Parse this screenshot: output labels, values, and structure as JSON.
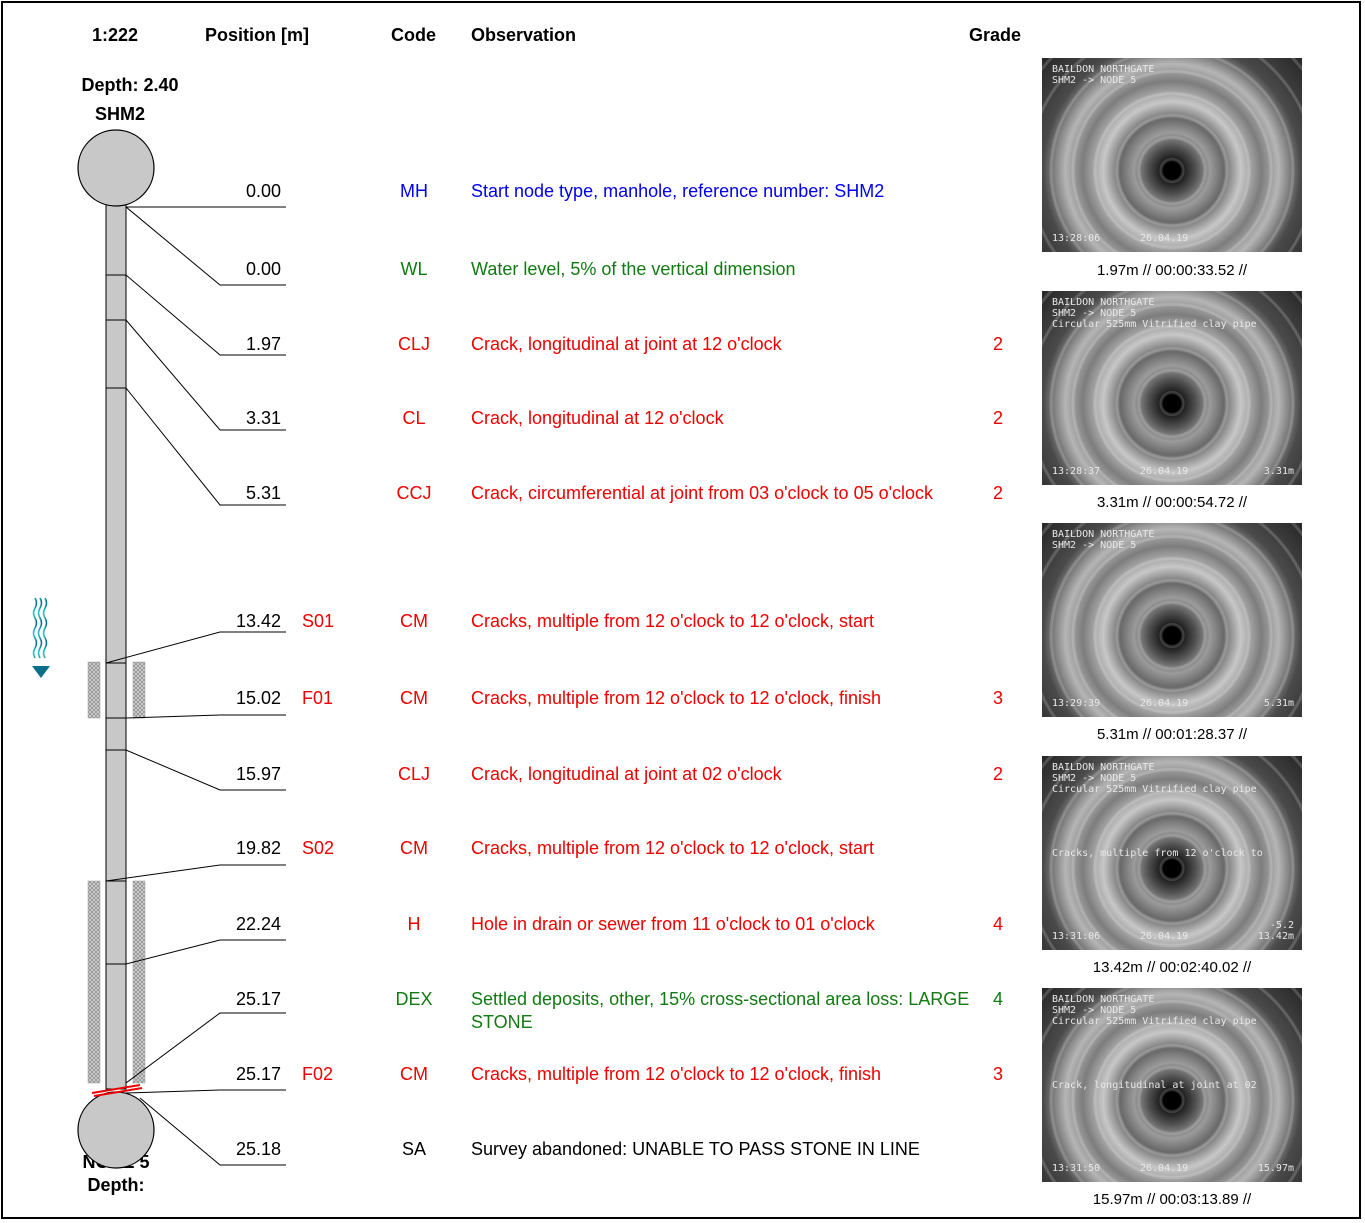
{
  "header": {
    "scale": "1:222",
    "position": "Position [m]",
    "code": "Code",
    "observation": "Observation",
    "grade": "Grade"
  },
  "start_node": {
    "depth": "Depth: 2.40",
    "name": "SHM2"
  },
  "end_node": {
    "name": "NODE 5",
    "depth": "Depth:"
  },
  "colors": {
    "blue": "#0000ee",
    "green": "#117a11",
    "red": "#ee0000",
    "black": "#000000"
  },
  "observations": [
    {
      "position": "0.00",
      "marker": "",
      "code": "MH",
      "text": "Start node type, manhole, reference number: SHM2",
      "grade": "",
      "color": "blue"
    },
    {
      "position": "0.00",
      "marker": "",
      "code": "WL",
      "text": "Water level, 5% of the vertical dimension",
      "grade": "",
      "color": "green"
    },
    {
      "position": "1.97",
      "marker": "",
      "code": "CLJ",
      "text": "Crack, longitudinal at joint at 12 o'clock",
      "grade": "2",
      "color": "red"
    },
    {
      "position": "3.31",
      "marker": "",
      "code": "CL",
      "text": "Crack, longitudinal at 12 o'clock",
      "grade": "2",
      "color": "red"
    },
    {
      "position": "5.31",
      "marker": "",
      "code": "CCJ",
      "text": "Crack, circumferential at joint from 03 o'clock to 05 o'clock",
      "grade": "2",
      "color": "red"
    },
    {
      "position": "13.42",
      "marker": "S01",
      "code": "CM",
      "text": "Cracks, multiple from 12 o'clock to 12 o'clock, start",
      "grade": "",
      "color": "red"
    },
    {
      "position": "15.02",
      "marker": "F01",
      "code": "CM",
      "text": "Cracks, multiple from 12 o'clock to 12 o'clock, finish",
      "grade": "3",
      "color": "red"
    },
    {
      "position": "15.97",
      "marker": "",
      "code": "CLJ",
      "text": "Crack, longitudinal at joint at 02 o'clock",
      "grade": "2",
      "color": "red"
    },
    {
      "position": "19.82",
      "marker": "S02",
      "code": "CM",
      "text": "Cracks, multiple from 12 o'clock to 12 o'clock, start",
      "grade": "",
      "color": "red"
    },
    {
      "position": "22.24",
      "marker": "",
      "code": "H",
      "text": "Hole in drain or sewer from 11 o'clock to 01 o'clock",
      "grade": "4",
      "color": "red"
    },
    {
      "position": "25.17",
      "marker": "",
      "code": "DEX",
      "text": "Settled deposits, other, 15% cross-sectional area loss: LARGE STONE",
      "grade": "4",
      "color": "green"
    },
    {
      "position": "25.17",
      "marker": "F02",
      "code": "CM",
      "text": "Cracks, multiple from 12 o'clock to 12 o'clock, finish",
      "grade": "3",
      "color": "red"
    },
    {
      "position": "25.18",
      "marker": "",
      "code": "SA",
      "text": "Survey abandoned: UNABLE TO PASS STONE IN LINE",
      "grade": "",
      "color": "black"
    }
  ],
  "photos": [
    {
      "caption": "1.97m // 00:00:33.52 //",
      "osd_top": "BAILDON NORTHGATE\nSHM2 -> NODE 5",
      "osd_time": "13:28:06",
      "osd_date": "26.04.19",
      "osd_dist": "",
      "osd_mid": ""
    },
    {
      "caption": "3.31m // 00:00:54.72 //",
      "osd_top": "BAILDON NORTHGATE\nSHM2 -> NODE 5\nCircular 525mm Vitrified clay pipe",
      "osd_time": "13:28:37",
      "osd_date": "26.04.19",
      "osd_dist": "3.31m",
      "osd_mid": ""
    },
    {
      "caption": "5.31m // 00:01:28.37 //",
      "osd_top": "BAILDON NORTHGATE\nSHM2 -> NODE 5",
      "osd_time": "13:29:39",
      "osd_date": "26.04.19",
      "osd_dist": "5.31m",
      "osd_mid": ""
    },
    {
      "caption": "13.42m // 00:02:40.02 //",
      "osd_top": "BAILDON NORTHGATE\nSHM2 -> NODE 5\nCircular 525mm Vitrified clay pipe",
      "osd_time": "13:31:06",
      "osd_date": "26.04.19",
      "osd_dist": "-5.2\n13.42m",
      "osd_mid": "Cracks, multiple from 12 o'clock to"
    },
    {
      "caption": "15.97m // 00:03:13.89 //",
      "osd_top": "BAILDON NORTHGATE\nSHM2 -> NODE 5\nCircular 525mm Vitrified clay pipe",
      "osd_time": "13:31:50",
      "osd_date": "26.04.19",
      "osd_dist": "15.97m",
      "osd_mid": "Crack, longitudinal at joint at 02"
    }
  ]
}
